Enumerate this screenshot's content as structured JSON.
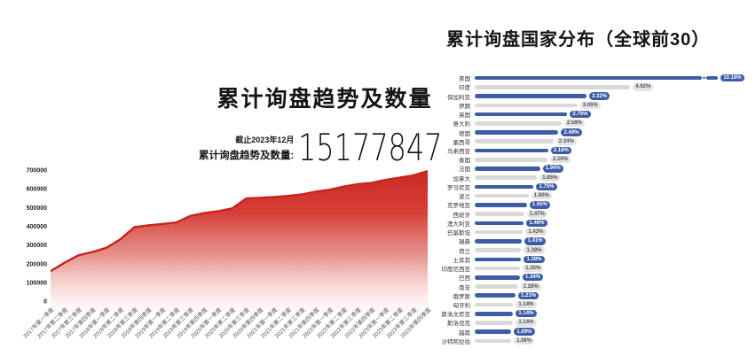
{
  "colors": {
    "area_line": "#c8221e",
    "area_fill_top": "#ca2823",
    "bar_blue": "#3d5ca6",
    "bar_gray": "#d9d9d9",
    "badge_blue_bg": "#3d5ca6",
    "badge_blue_text": "#ffffff",
    "badge_gray_bg": "#e3e3e3",
    "badge_gray_text": "#555555",
    "axis_tick_text": "#222222",
    "axis_label_text": "#555555"
  },
  "left_chart": {
    "title": "累计询盘趋势及数量",
    "as_of": "截止2023年12月",
    "total_label": "累计询盘趋势及数量:",
    "total_value": "15177847"
  },
  "right_chart": {
    "title": "累计询盘国家分布（全球前30）"
  },
  "chart_data": [
    {
      "type": "area",
      "title": "累计询盘趋势及数量",
      "annotation": {
        "as_of": "截止2023年12月",
        "label": "累计询盘趋势及数量:",
        "value": "15177847"
      },
      "x": [
        "2017年第一季度",
        "2017年第二季度",
        "2017年第三季度",
        "2017年第四季度",
        "2018年第一季度",
        "2018年第二季度",
        "2018年第三季度",
        "2018年第四季度",
        "2019年第一季度",
        "2019年第二季度",
        "2019年第三季度",
        "2019年第四季度",
        "2020年第一季度",
        "2020年第二季度",
        "2020年第三季度",
        "2020年第四季度",
        "2021年第一季度",
        "2021年第二季度",
        "2021年第三季度",
        "2021年第四季度",
        "2022年第一季度",
        "2022年第二季度",
        "2022年第三季度",
        "2022年第四季度",
        "2023年第一季度",
        "2023年第二季度",
        "2023年第三季度",
        "2023年第四季度"
      ],
      "values": [
        160000,
        205000,
        245000,
        262000,
        285000,
        330000,
        395000,
        405000,
        412000,
        420000,
        455000,
        470000,
        480000,
        495000,
        548000,
        552000,
        556000,
        562000,
        570000,
        585000,
        595000,
        612000,
        625000,
        632000,
        648000,
        660000,
        672000,
        695000
      ],
      "ylim": [
        0,
        700000
      ],
      "y_ticks": [
        0,
        100000,
        200000,
        300000,
        400000,
        500000,
        600000,
        700000
      ],
      "grid": false,
      "legend": null
    },
    {
      "type": "bar",
      "orientation": "horizontal",
      "title": "累计询盘国家分布（全球前30）",
      "categories": [
        "美国",
        "印度",
        "保加利亚",
        "伊朗",
        "英国",
        "意大利",
        "德国",
        "墨西哥",
        "马来西亚",
        "泰国",
        "法国",
        "加拿大",
        "罗马尼亚",
        "波兰",
        "克罗地亚",
        "西班牙",
        "澳大利亚",
        "巴基斯坦",
        "瑞典",
        "荷兰",
        "土耳其",
        "印度尼西亚",
        "巴西",
        "南非",
        "俄罗斯",
        "匈牙利",
        "斯洛文尼亚",
        "斯洛伐克",
        "越南",
        "沙特阿拉伯"
      ],
      "values": [
        10.18,
        4.62,
        3.32,
        3.05,
        2.75,
        2.58,
        2.49,
        2.34,
        2.18,
        2.16,
        1.94,
        1.85,
        1.75,
        1.6,
        1.55,
        1.47,
        1.46,
        1.43,
        1.41,
        1.38,
        1.38,
        1.35,
        1.34,
        1.28,
        1.21,
        1.14,
        1.14,
        1.14,
        1.09,
        1.08
      ],
      "labels": [
        "10.18%",
        "4.62%",
        "3.32%",
        "3.05%",
        "2.75%",
        "2.58%",
        "2.49%",
        "2.34%",
        "2.18%",
        "2.16%",
        "1.94%",
        "1.85%",
        "1.75%",
        "1.60%",
        "1.55%",
        "1.47%",
        "1.46%",
        "1.43%",
        "1.41%",
        "1.38%",
        "1.38%",
        "1.35%",
        "1.34%",
        "1.28%",
        "1.21%",
        "1.14%",
        "1.14%",
        "1.14%",
        "1.09%",
        "1.08%"
      ],
      "unit": "%",
      "broken_bar_index": 0,
      "legend": null
    }
  ]
}
